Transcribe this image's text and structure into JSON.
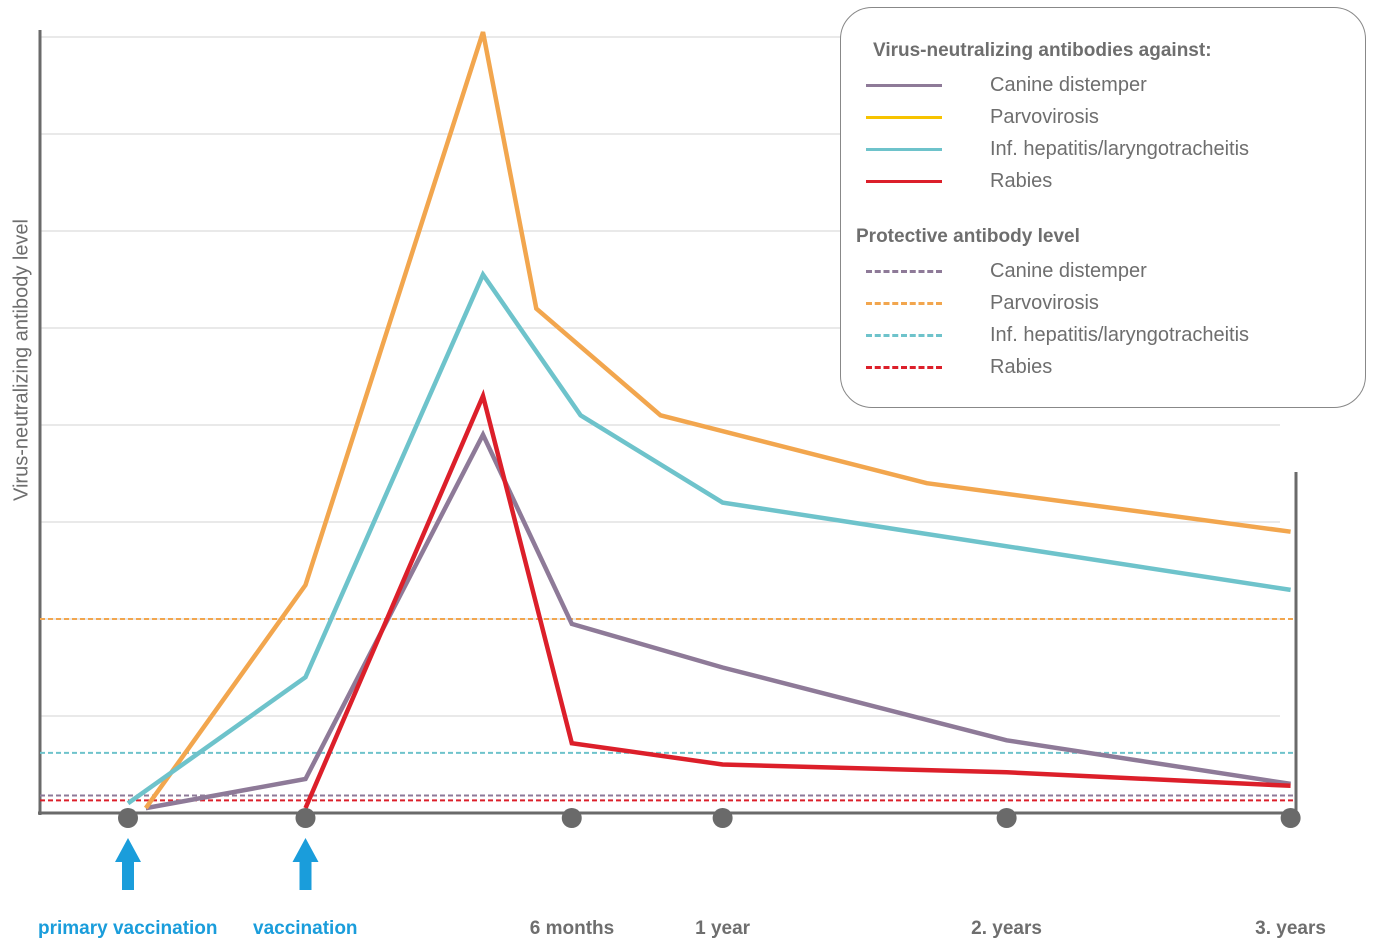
{
  "chart_data": {
    "type": "line",
    "title": "",
    "ylabel": "Virus-neutralizing antibody level",
    "xlabel": "",
    "ylim": [
      0,
      8
    ],
    "grid": true,
    "legend_position": "top-right",
    "x_ticks": [
      {
        "label": "primary vaccination",
        "x": 0,
        "highlight": true
      },
      {
        "label": "vaccination",
        "x": 1,
        "highlight": true
      },
      {
        "label": "6 months",
        "x": 2.5,
        "highlight": false
      },
      {
        "label": "1 year",
        "x": 3.35,
        "highlight": false
      },
      {
        "label": "2. years",
        "x": 4.95,
        "highlight": false
      },
      {
        "label": "3. years",
        "x": 6.55,
        "highlight": false
      }
    ],
    "legend_title_series": "Virus-neutralizing antibodies against:",
    "legend_title_levels": "Protective antibody level",
    "series": [
      {
        "name": "Canine distemper",
        "color": "#8e7a98",
        "points": [
          [
            0.1,
            0.05
          ],
          [
            1,
            0.35
          ],
          [
            2.0,
            3.9
          ],
          [
            2.5,
            1.95
          ],
          [
            3.35,
            1.5
          ],
          [
            4.95,
            0.75
          ],
          [
            6.55,
            0.3
          ]
        ]
      },
      {
        "name": "Parvovirosis",
        "color": "#f2a64e",
        "points": [
          [
            0.1,
            0.05
          ],
          [
            1,
            2.35
          ],
          [
            2.0,
            8.05
          ],
          [
            2.3,
            5.2
          ],
          [
            3.0,
            4.1
          ],
          [
            4.5,
            3.4
          ],
          [
            6.55,
            2.9
          ]
        ]
      },
      {
        "name": "Inf. hepatitis/laryngotracheitis",
        "color": "#6ec3cb",
        "points": [
          [
            0.0,
            0.1
          ],
          [
            1,
            1.4
          ],
          [
            2.0,
            5.55
          ],
          [
            2.55,
            4.1
          ],
          [
            3.35,
            3.2
          ],
          [
            6.55,
            2.3
          ]
        ]
      },
      {
        "name": "Rabies",
        "color": "#dc1f2a",
        "points": [
          [
            1,
            0.05
          ],
          [
            2.0,
            4.3
          ],
          [
            2.5,
            0.72
          ],
          [
            3.35,
            0.5
          ],
          [
            4.95,
            0.42
          ],
          [
            6.55,
            0.28
          ]
        ]
      }
    ],
    "protective_levels": [
      {
        "name": "Canine distemper",
        "color": "#8e7a98",
        "y": 0.18
      },
      {
        "name": "Parvovirosis",
        "color": "#f2a64e",
        "y": 2.0
      },
      {
        "name": "Inf. hepatitis/laryngotracheitis",
        "color": "#6ec3cb",
        "y": 0.62
      },
      {
        "name": "Rabies",
        "color": "#dc1f2a",
        "y": 0.13
      }
    ],
    "legend_swatch_colors": {
      "Canine distemper": "#8e7a98",
      "Parvovirosis": "#f7c300",
      "Inf. hepatitis/laryngotracheitis": "#6ec3cb",
      "Rabies": "#dc1f2a"
    },
    "highlight_label_color": "#1a9ddb",
    "default_label_color": "#6e6e6e",
    "vaccination_marker": "up-arrow-icon"
  }
}
